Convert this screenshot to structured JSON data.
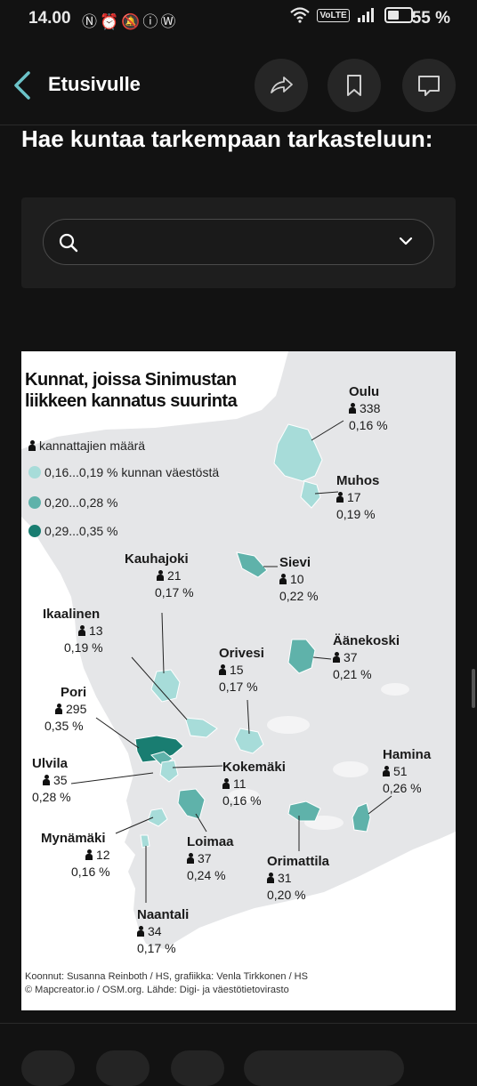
{
  "status": {
    "time": "14.00",
    "battery": "55 %",
    "icons": [
      "nfc-icon",
      "alarm-icon",
      "mute-icon",
      "info-icon",
      "app-icon",
      "wifi-icon",
      "volte-icon",
      "signal-icon",
      "battery-icon"
    ],
    "volte": "VoLTE"
  },
  "nav": {
    "back_label": "Etusivulle"
  },
  "heading": "Hae kuntaa tarkempaan tarkasteluun:",
  "search": {
    "placeholder": "",
    "value": ""
  },
  "map": {
    "title": "Kunnat, joissa Sinimustan liikkeen kannatus suurinta",
    "legend": {
      "count_label": "kannattajien määrä",
      "bins": [
        {
          "label": "0,16...0,19 % kunnan väestöstä",
          "color": "#a7dcd9"
        },
        {
          "label": "0,20...0,28 %",
          "color": "#5fb2aa"
        },
        {
          "label": "0,29...0,35 %",
          "color": "#197d71"
        }
      ]
    },
    "municipalities": [
      {
        "name": "Oulu",
        "count": "338",
        "pct": "0,16 %"
      },
      {
        "name": "Muhos",
        "count": "17",
        "pct": "0,19 %"
      },
      {
        "name": "Kauhajoki",
        "count": "21",
        "pct": "0,17 %"
      },
      {
        "name": "Sievi",
        "count": "10",
        "pct": "0,22 %"
      },
      {
        "name": "Ikaalinen",
        "count": "13",
        "pct": "0,19 %"
      },
      {
        "name": "Orivesi",
        "count": "15",
        "pct": "0,17 %"
      },
      {
        "name": "Äänekoski",
        "count": "37",
        "pct": "0,21 %"
      },
      {
        "name": "Pori",
        "count": "295",
        "pct": "0,35 %"
      },
      {
        "name": "Ulvila",
        "count": "35",
        "pct": "0,28 %"
      },
      {
        "name": "Kokemäki",
        "count": "11",
        "pct": "0,16 %"
      },
      {
        "name": "Hamina",
        "count": "51",
        "pct": "0,26 %"
      },
      {
        "name": "Mynämäki",
        "count": "12",
        "pct": "0,16 %"
      },
      {
        "name": "Loimaa",
        "count": "37",
        "pct": "0,24 %"
      },
      {
        "name": "Orimattila",
        "count": "31",
        "pct": "0,20 %"
      },
      {
        "name": "Naantali",
        "count": "34",
        "pct": "0,17 %"
      }
    ],
    "credits": [
      "Koonnut: Susanna Reinboth / HS, grafiikka: Venla Tirkkonen / HS",
      "© Mapcreator.io / OSM.org. Lähde: Digi- ja väestötietovirasto"
    ]
  }
}
